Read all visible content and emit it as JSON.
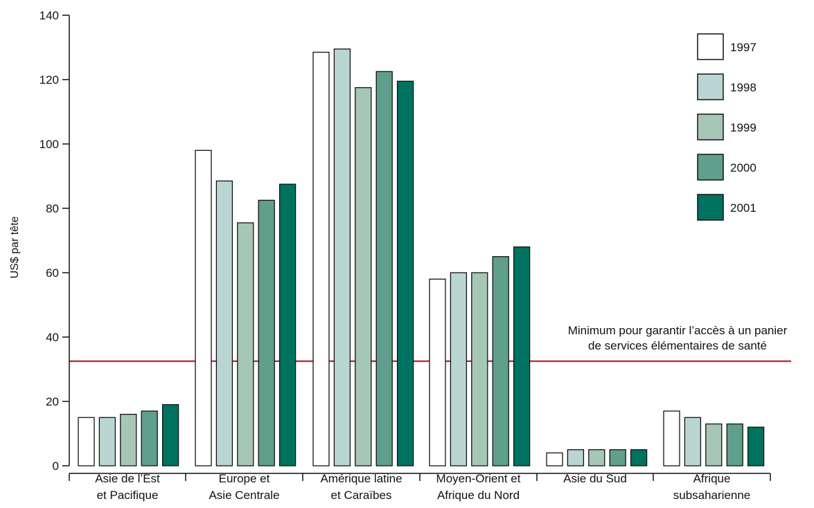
{
  "chart_data": {
    "type": "bar",
    "ylabel": "US$ par tête",
    "ylim": [
      0,
      140
    ],
    "yticks": [
      0,
      20,
      40,
      60,
      80,
      100,
      120,
      140
    ],
    "categories": [
      [
        "Asie de l’Est",
        "et Pacifique"
      ],
      [
        "Europe et",
        "Asie Centrale"
      ],
      [
        "Amérique latine",
        "et Caraïbes"
      ],
      [
        "Moyen-Orient et",
        "Afrique du Nord"
      ],
      [
        "Asie du Sud"
      ],
      [
        "Afrique",
        "subsaharienne"
      ]
    ],
    "series": [
      {
        "name": "1997",
        "color": "#ffffff",
        "values": [
          15,
          98,
          128.5,
          58,
          4,
          17
        ]
      },
      {
        "name": "1998",
        "color": "#b9d6d3",
        "values": [
          15,
          88.5,
          129.5,
          60,
          5,
          15
        ]
      },
      {
        "name": "1999",
        "color": "#a6c7b5",
        "values": [
          16,
          75.5,
          117.5,
          60,
          5,
          13
        ]
      },
      {
        "name": "2000",
        "color": "#5f9f8c",
        "values": [
          17,
          82.5,
          122.5,
          65,
          5,
          13
        ]
      },
      {
        "name": "2001",
        "color": "#007260",
        "values": [
          19,
          87.5,
          119.5,
          68,
          5,
          12
        ]
      }
    ],
    "reference_line": {
      "value": 32.5,
      "color": "#c0343f",
      "label_lines": [
        "Minimum pour garantir l’accès à un panier",
        "de services élémentaires de santé"
      ]
    },
    "legend_position": "top-right",
    "grid": false
  }
}
